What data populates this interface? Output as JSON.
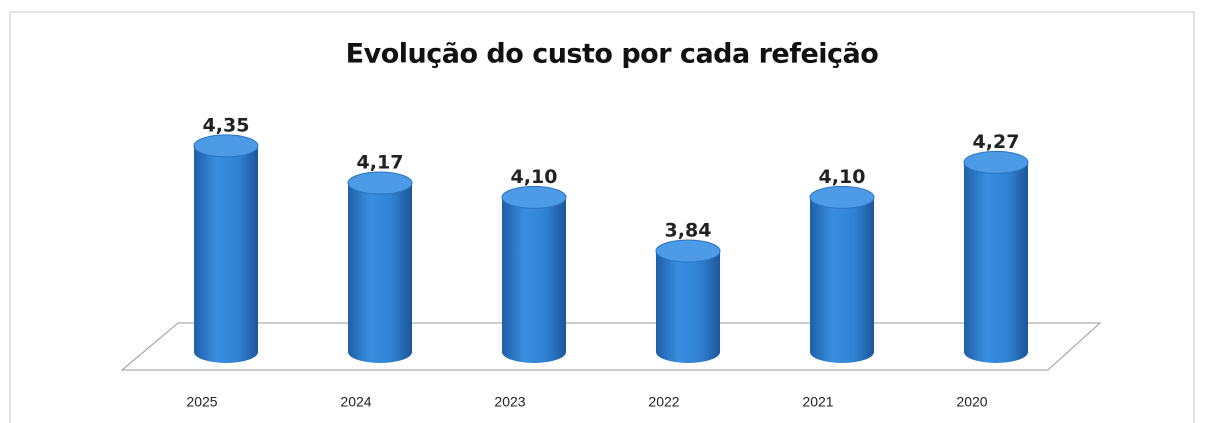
{
  "chart_data": {
    "type": "bar",
    "title": "Evolução do custo por cada refeição",
    "categories": [
      "2025",
      "2024",
      "2023",
      "2022",
      "2021",
      "2020"
    ],
    "values": [
      4.35,
      4.17,
      4.1,
      3.84,
      4.1,
      4.27
    ],
    "value_labels": [
      "4,35",
      "4,17",
      "4,10",
      "3,84",
      "4,10",
      "4,27"
    ],
    "color": "#2f80d1",
    "ylim": [
      3.35,
      4.5
    ]
  }
}
